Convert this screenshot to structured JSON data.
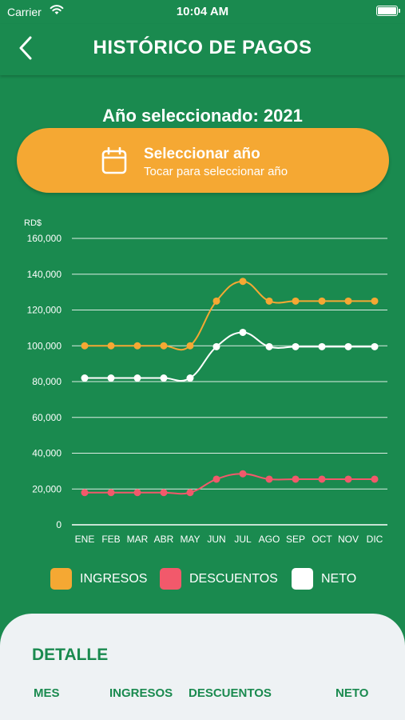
{
  "status": {
    "carrier": "Carrier",
    "time": "10:04 AM",
    "battery_level": 1.0
  },
  "header": {
    "title": "HISTÓRICO DE PAGOS",
    "back_icon": "chevron-left-icon"
  },
  "year": {
    "label": "Año seleccionado: 2021"
  },
  "select_button": {
    "title": "Seleccionar año",
    "subtitle": "Tocar para seleccionar año",
    "icon": "calendar-icon",
    "color": "#f5a833"
  },
  "colors": {
    "background": "#1a8a4f",
    "panel": "#eef2f4",
    "accent_green": "#1a8a4f"
  },
  "chart_data": {
    "type": "line",
    "ylabel": "RD$",
    "ylim": [
      0,
      160000
    ],
    "yticks": [
      0,
      20000,
      40000,
      60000,
      80000,
      100000,
      120000,
      140000,
      160000
    ],
    "ytick_labels": [
      "0",
      "20,000",
      "40,000",
      "60,000",
      "80,000",
      "100,000",
      "120,000",
      "140,000",
      "160,000"
    ],
    "categories": [
      "ENE",
      "FEB",
      "MAR",
      "ABR",
      "MAY",
      "JUN",
      "JUL",
      "AGO",
      "SEP",
      "OCT",
      "NOV",
      "DIC"
    ],
    "grid": true,
    "legend_position": "bottom",
    "series": [
      {
        "name": "INGRESOS",
        "color": "#f5a833",
        "values": [
          100000,
          100000,
          100000,
          100000,
          100000,
          125000,
          136000,
          125000,
          125000,
          125000,
          125000,
          125000
        ]
      },
      {
        "name": "DESCUENTOS",
        "color": "#f2596b",
        "values": [
          18000,
          18000,
          18000,
          18000,
          18000,
          25500,
          28500,
          25500,
          25500,
          25500,
          25500,
          25500
        ]
      },
      {
        "name": "NETO",
        "color": "#ffffff",
        "values": [
          82000,
          82000,
          82000,
          82000,
          82000,
          99500,
          107500,
          99500,
          99500,
          99500,
          99500,
          99500
        ]
      }
    ]
  },
  "detail": {
    "title": "DETALLE",
    "columns": [
      "MES",
      "INGRESOS",
      "DESCUENTOS",
      "NETO"
    ]
  }
}
